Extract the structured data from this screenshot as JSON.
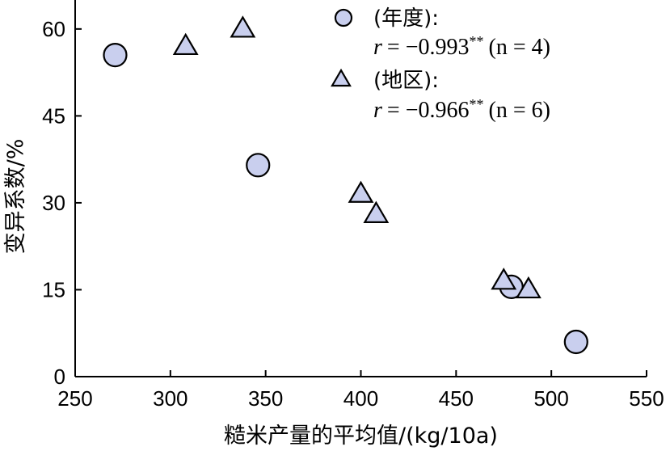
{
  "chart_data": {
    "type": "scatter",
    "xlabel": "糙米产量的平均值/(kg/10a)",
    "ylabel": "变异系数/%",
    "xlim": [
      250,
      550
    ],
    "ylim": [
      0,
      65
    ],
    "x_ticks": [
      250,
      300,
      350,
      400,
      450,
      500,
      550
    ],
    "y_ticks": [
      0,
      15,
      30,
      45,
      60
    ],
    "grid": false,
    "legend_position": "top-right",
    "series": [
      {
        "name": "(年度):",
        "marker": "circle",
        "color": "#c9cfee",
        "stat": {
          "r_prefix": "r",
          "r_value": "= −0.993",
          "significance": "**",
          "n_text": "(n = 4)"
        },
        "points": [
          {
            "x": 271,
            "y": 55.5
          },
          {
            "x": 346,
            "y": 36.5
          },
          {
            "x": 479,
            "y": 15.5
          },
          {
            "x": 513,
            "y": 6.0
          }
        ]
      },
      {
        "name": "(地区):",
        "marker": "triangle",
        "color": "#c9cfee",
        "stat": {
          "r_prefix": "r",
          "r_value": "= −0.966",
          "significance": "**",
          "n_text": "(n = 6)"
        },
        "points": [
          {
            "x": 308,
            "y": 57.0
          },
          {
            "x": 338,
            "y": 60.0
          },
          {
            "x": 400,
            "y": 31.5
          },
          {
            "x": 408,
            "y": 28.0
          },
          {
            "x": 475,
            "y": 16.5
          },
          {
            "x": 488,
            "y": 15.0
          }
        ]
      }
    ]
  }
}
